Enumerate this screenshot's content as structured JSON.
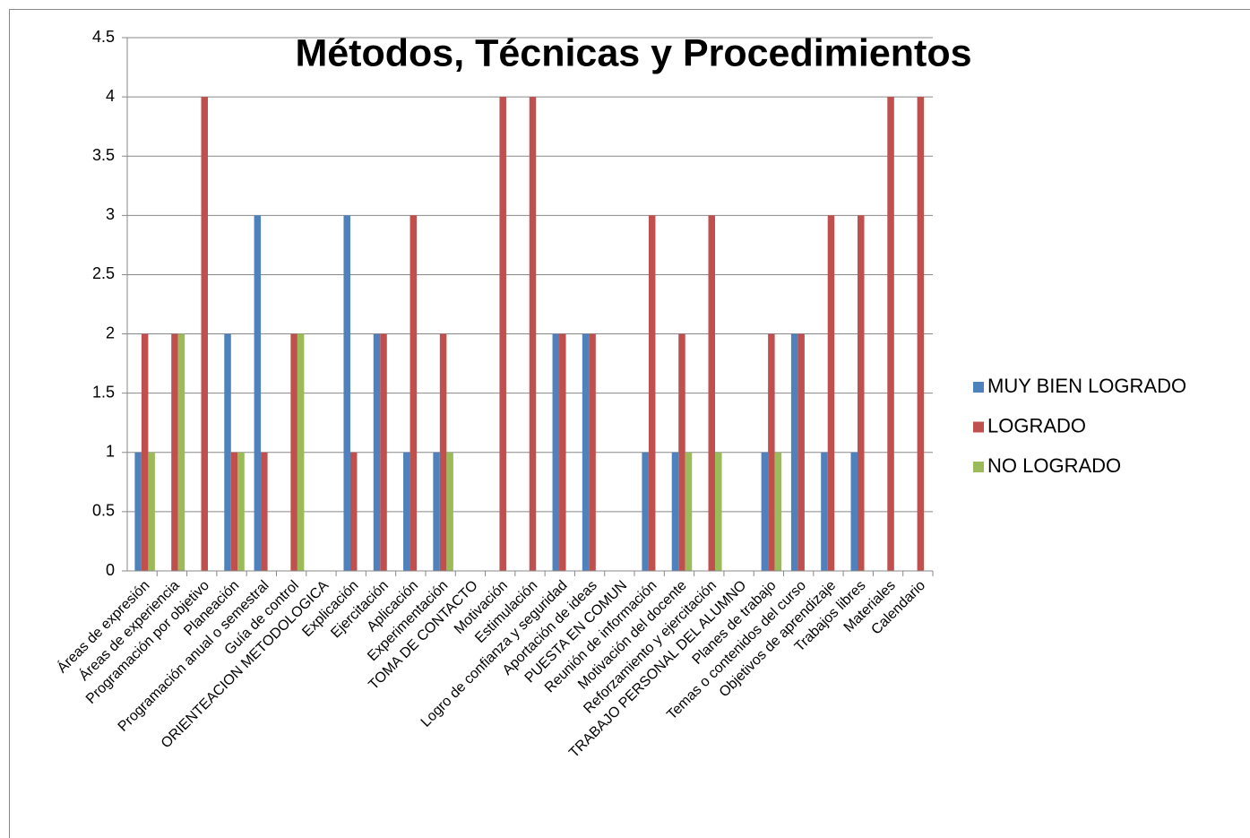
{
  "chart_data": {
    "type": "bar",
    "title": "Métodos, Técnicas y Procedimientos",
    "categories": [
      "Áreas de expresión",
      "Áreas de experiencia",
      "Programación por objetivo",
      "Planeación",
      "Programación anual o semestral",
      "Guía de control",
      "ORIENTEACION METODOLOGICA",
      "Explicación",
      "Ejercitación",
      "Aplicación",
      "Experimentación",
      "TOMA DE CONTACTO",
      "Motivación",
      "Estimulación",
      "Logro de confianza y seguridad",
      "Aportación de ideas",
      "PUESTA EN COMUN",
      "Reunión de información",
      "Motivación del docente",
      "Reforzamiento y ejercitación",
      "TRABAJO PERSONAL DEL ALUMNO",
      "Planes de trabajo",
      "Temas o contenidos del curso",
      "Objetivos de aprendizaje",
      "Trabajos libres",
      "Materiales",
      "Calendario"
    ],
    "series": [
      {
        "name": "MUY BIEN LOGRADO",
        "color": "#4f81bd",
        "values": [
          1,
          null,
          null,
          2,
          3,
          null,
          null,
          3,
          2,
          1,
          1,
          null,
          null,
          null,
          2,
          2,
          null,
          1,
          1,
          null,
          null,
          1,
          2,
          1,
          1,
          null,
          null
        ]
      },
      {
        "name": "LOGRADO",
        "color": "#c0504d",
        "values": [
          2,
          2,
          4,
          1,
          1,
          2,
          null,
          1,
          2,
          3,
          2,
          null,
          4,
          4,
          2,
          2,
          null,
          3,
          2,
          3,
          null,
          2,
          2,
          3,
          3,
          4,
          4
        ]
      },
      {
        "name": "NO LOGRADO",
        "color": "#9bbb59",
        "values": [
          1,
          2,
          null,
          1,
          null,
          2,
          null,
          null,
          null,
          null,
          1,
          null,
          null,
          null,
          null,
          null,
          null,
          null,
          1,
          1,
          null,
          1,
          null,
          null,
          null,
          null,
          null
        ]
      }
    ],
    "ylim": [
      0,
      4.5
    ],
    "yticks": [
      0,
      0.5,
      1,
      1.5,
      2,
      2.5,
      3,
      3.5,
      4,
      4.5
    ],
    "grid": true,
    "legend": "right"
  }
}
